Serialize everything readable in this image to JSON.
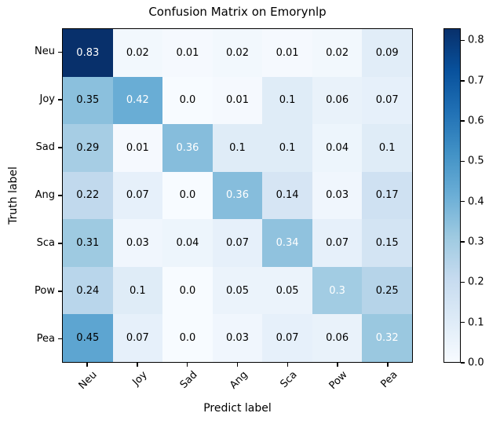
{
  "title": "Confusion Matrix on Emorynlp",
  "chart_data": {
    "type": "heatmap",
    "title": "Confusion Matrix on Emorynlp",
    "xlabel": "Predict label",
    "ylabel": "Truth label",
    "x_categories": [
      "Neu",
      "Joy",
      "Sad",
      "Ang",
      "Sca",
      "Pow",
      "Pea"
    ],
    "y_categories": [
      "Neu",
      "Joy",
      "Sad",
      "Ang",
      "Sca",
      "Pow",
      "Pea"
    ],
    "values": [
      [
        0.83,
        0.02,
        0.01,
        0.02,
        0.01,
        0.02,
        0.09
      ],
      [
        0.35,
        0.42,
        0.0,
        0.01,
        0.1,
        0.06,
        0.07
      ],
      [
        0.29,
        0.01,
        0.36,
        0.1,
        0.1,
        0.04,
        0.1
      ],
      [
        0.22,
        0.07,
        0.0,
        0.36,
        0.14,
        0.03,
        0.17
      ],
      [
        0.31,
        0.03,
        0.04,
        0.07,
        0.34,
        0.07,
        0.15
      ],
      [
        0.24,
        0.1,
        0.0,
        0.05,
        0.05,
        0.3,
        0.25
      ],
      [
        0.45,
        0.07,
        0.0,
        0.03,
        0.07,
        0.06,
        0.32
      ]
    ],
    "cell_labels": [
      [
        "0.83",
        "0.02",
        "0.01",
        "0.02",
        "0.01",
        "0.02",
        "0.09"
      ],
      [
        "0.35",
        "0.42",
        "0.0",
        "0.01",
        "0.1",
        "0.06",
        "0.07"
      ],
      [
        "0.29",
        "0.01",
        "0.36",
        "0.1",
        "0.1",
        "0.04",
        "0.1"
      ],
      [
        "0.22",
        "0.07",
        "0.0",
        "0.36",
        "0.14",
        "0.03",
        "0.17"
      ],
      [
        "0.31",
        "0.03",
        "0.04",
        "0.07",
        "0.34",
        "0.07",
        "0.15"
      ],
      [
        "0.24",
        "0.1",
        "0.0",
        "0.05",
        "0.05",
        "0.3",
        "0.25"
      ],
      [
        "0.45",
        "0.07",
        "0.0",
        "0.03",
        "0.07",
        "0.06",
        "0.32"
      ]
    ],
    "colormap": {
      "name": "Blues",
      "stops": [
        "#f7fbff",
        "#deebf7",
        "#c6dbef",
        "#9ecae1",
        "#6baed6",
        "#4292c6",
        "#2171b5",
        "#08519c",
        "#08306b"
      ]
    },
    "vmin": 0.0,
    "vmax": 0.83,
    "text_colors": {
      "diagonal": "#ffffff",
      "off_diagonal": "#000000"
    },
    "colorbar": {
      "tick_labels": [
        "0.8",
        "0.7",
        "0.6",
        "0.5",
        "0.4",
        "0.3",
        "0.2",
        "0.1",
        "0.0"
      ],
      "tick_values": [
        0.8,
        0.7,
        0.6,
        0.5,
        0.4,
        0.3,
        0.2,
        0.1,
        0.0
      ]
    },
    "layout_hints": {
      "grid": false,
      "legend": "colorbar-right",
      "x_tick_rotation_deg": 45
    }
  }
}
